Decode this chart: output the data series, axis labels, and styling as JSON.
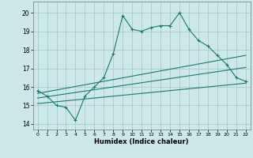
{
  "title": "",
  "xlabel": "Humidex (Indice chaleur)",
  "xlim": [
    -0.5,
    22.5
  ],
  "ylim": [
    13.7,
    20.6
  ],
  "yticks": [
    14,
    15,
    16,
    17,
    18,
    19,
    20
  ],
  "xticks": [
    0,
    1,
    2,
    3,
    4,
    5,
    6,
    7,
    8,
    9,
    10,
    11,
    12,
    13,
    14,
    15,
    16,
    17,
    18,
    19,
    20,
    21,
    22
  ],
  "bg_color": "#cce8e8",
  "line_color": "#1a7a6e",
  "grid_color": "#aacccc",
  "series1_x": [
    0,
    1,
    2,
    3,
    4,
    5,
    6,
    7,
    8,
    9,
    10,
    11,
    12,
    13,
    14,
    15,
    16,
    17,
    18,
    19,
    20,
    21,
    22
  ],
  "series1_y": [
    15.8,
    15.5,
    15.0,
    14.9,
    14.2,
    15.5,
    16.0,
    16.5,
    17.8,
    19.85,
    19.1,
    19.0,
    19.2,
    19.3,
    19.3,
    20.0,
    19.1,
    18.5,
    18.2,
    17.7,
    17.2,
    16.5,
    16.3
  ],
  "series2_x": [
    0,
    22
  ],
  "series2_y": [
    15.65,
    17.7
  ],
  "series3_x": [
    0,
    22
  ],
  "series3_y": [
    15.4,
    17.05
  ],
  "series4_x": [
    0,
    22
  ],
  "series4_y": [
    15.1,
    16.2
  ]
}
